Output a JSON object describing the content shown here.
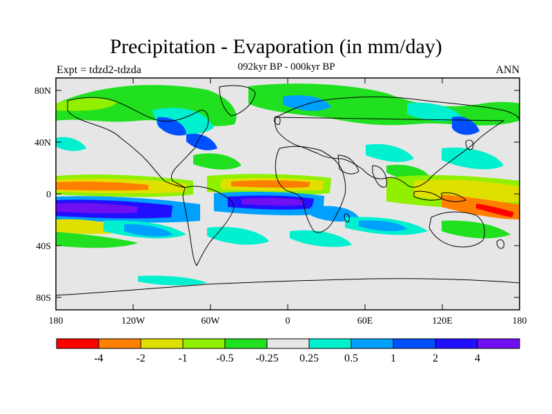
{
  "title": "Precipitation - Evaporation (in mm/day)",
  "subtitle": "092kyr BP - 000kyr BP",
  "experiment_label": "Expt = tdzd2-tdzda",
  "season_label": "ANN",
  "lat_ticks": [
    "80N",
    "40N",
    "0",
    "40S",
    "80S"
  ],
  "lon_ticks": [
    "180",
    "120W",
    "60W",
    "0",
    "60E",
    "120E",
    "180"
  ],
  "colorbar": {
    "colors": [
      "#ff0000",
      "#ff7f00",
      "#e0e000",
      "#90f000",
      "#20e020",
      "#e6e6e6",
      "#00f0d0",
      "#00a0ff",
      "#0050ff",
      "#2010ff",
      "#7010f0"
    ],
    "labels": [
      "-4",
      "-2",
      "-1",
      "-0.5",
      "-0.25",
      "0.25",
      "0.5",
      "1",
      "2",
      "4"
    ]
  },
  "colors": {
    "background_land": "#e6e6e6",
    "coastline": "#000000"
  }
}
